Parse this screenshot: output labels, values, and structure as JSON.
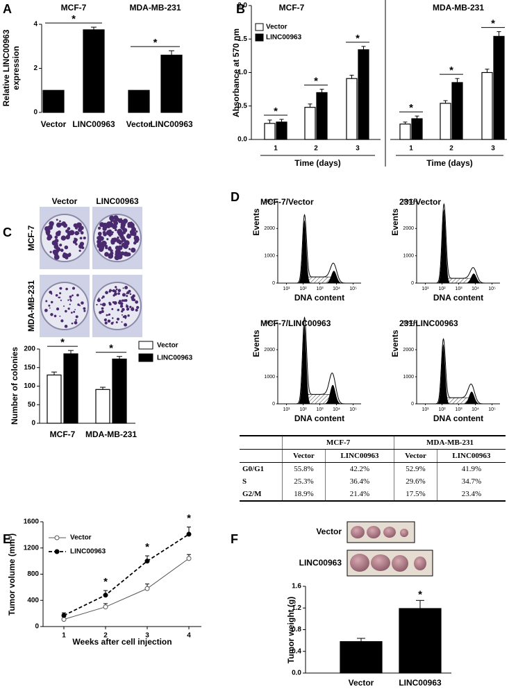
{
  "chart_data": [
    {
      "type": "bar",
      "panel": "A",
      "ylabel": [
        "Relative LINC00963",
        "expression"
      ],
      "groups": [
        "MCF-7",
        "MDA-MB-231"
      ],
      "categories": [
        "Vector",
        "LINC00963",
        "Vector",
        "LINC00963"
      ],
      "values": [
        1,
        3.75,
        1,
        2.6
      ],
      "errors": [
        null,
        0.12,
        null,
        0.2
      ],
      "color": "#000000",
      "ylim": [
        0,
        4
      ],
      "yticks": [
        0,
        2,
        4
      ],
      "annotations": [
        "*",
        "*"
      ]
    },
    {
      "type": "grouped-bar",
      "panel": "B",
      "ylabel": "Absorbance at 570 nm",
      "xlabel": "Time (days)",
      "groups": [
        "MCF-7",
        "MDA-MB-231"
      ],
      "categories": [
        "1",
        "2",
        "3",
        "1",
        "2",
        "3"
      ],
      "series": [
        {
          "name": "Vector",
          "color": "#ffffff",
          "values": [
            0.24,
            0.48,
            0.91,
            0.23,
            0.54,
            1.0
          ],
          "errors": [
            0.05,
            0.05,
            0.05,
            0.03,
            0.04,
            0.05
          ]
        },
        {
          "name": "LINC00963",
          "color": "#000000",
          "values": [
            0.26,
            0.7,
            1.34,
            0.31,
            0.85,
            1.54
          ],
          "errors": [
            0.04,
            0.05,
            0.05,
            0.04,
            0.06,
            0.07
          ]
        }
      ],
      "ylim": [
        0,
        2
      ],
      "yticks": [
        {
          "value": 0,
          "label": "0.0"
        },
        {
          "value": 0.5,
          "label": "0.5"
        },
        {
          "value": 1,
          "label": "1.0"
        },
        {
          "value": 1.5,
          "label": "1.5"
        },
        {
          "value": 2,
          "label": "2.0"
        }
      ],
      "annotations": [
        "*",
        "*",
        "*",
        "*",
        "*",
        "*"
      ]
    },
    {
      "type": "grouped-bar",
      "panel": "C",
      "photo_columns": [
        "Vector",
        "LINC00963"
      ],
      "photo_rows": [
        "MCF-7",
        "MDA-MB-231"
      ],
      "ylabel": "Number of colonies",
      "categories": [
        "MCF-7",
        "MDA-MB-231"
      ],
      "series": [
        {
          "name": "Vector",
          "color": "#ffffff",
          "values": [
            130,
            91
          ],
          "errors": [
            8,
            6
          ]
        },
        {
          "name": "LINC00963",
          "color": "#000000",
          "values": [
            187,
            173
          ],
          "errors": [
            9,
            7
          ]
        }
      ],
      "ylim": [
        0,
        200
      ],
      "yticks": [
        0,
        50,
        100,
        150,
        200
      ],
      "annotations": [
        "*",
        "*"
      ]
    },
    {
      "type": "flow",
      "panel": "D",
      "title": "MCF-7/Vector",
      "xlabel": "DNA content",
      "ylabel": "Events",
      "xscale": "log",
      "xlim": [
        3,
        300000
      ],
      "xticks": [
        {
          "value": 10,
          "label": "10¹"
        },
        {
          "value": 100,
          "label": "10²"
        },
        {
          "value": 1000,
          "label": "10³"
        },
        {
          "value": 10000,
          "label": "10⁴"
        },
        {
          "value": 100000,
          "label": "10⁵"
        }
      ],
      "ylim": [
        0,
        3000
      ],
      "yticks": [
        0,
        1000,
        2000,
        3000
      ],
      "peak_x": [
        120,
        7000
      ],
      "peak_y": [
        2300,
        450
      ]
    },
    {
      "type": "flow",
      "title": "231/Vector",
      "xlabel": "DNA content",
      "ylabel": "Events",
      "xscale": "log",
      "xlim": [
        3,
        300000
      ],
      "xticks": [
        {
          "value": 10,
          "label": "10¹"
        },
        {
          "value": 100,
          "label": "10²"
        },
        {
          "value": 1000,
          "label": "10³"
        },
        {
          "value": 10000,
          "label": "10⁴"
        },
        {
          "value": 100000,
          "label": "10⁵"
        }
      ],
      "ylim": [
        0,
        3000
      ],
      "yticks": [
        0,
        1000,
        2000,
        3000
      ],
      "peak_x": [
        130,
        8000
      ],
      "peak_y": [
        2700,
        350
      ]
    },
    {
      "type": "flow",
      "title": "MCF-7/LINC00963",
      "xlabel": "DNA content",
      "ylabel": "Events",
      "xscale": "log",
      "xlim": [
        3,
        300000
      ],
      "xticks": [
        {
          "value": 10,
          "label": "10¹"
        },
        {
          "value": 100,
          "label": "10²"
        },
        {
          "value": 1000,
          "label": "10³"
        },
        {
          "value": 10000,
          "label": "10⁴"
        },
        {
          "value": 100000,
          "label": "10⁵"
        }
      ],
      "ylim": [
        0,
        3000
      ],
      "yticks": [
        0,
        1000,
        2000,
        3000
      ],
      "peak_x": [
        120,
        6000
      ],
      "peak_y": [
        2900,
        700
      ]
    },
    {
      "type": "flow",
      "title": "231/LINC00963",
      "xlabel": "DNA content",
      "ylabel": "Events",
      "xscale": "log",
      "xlim": [
        3,
        300000
      ],
      "xticks": [
        {
          "value": 10,
          "label": "10¹"
        },
        {
          "value": 100,
          "label": "10²"
        },
        {
          "value": 1000,
          "label": "10³"
        },
        {
          "value": 10000,
          "label": "10⁴"
        },
        {
          "value": 100000,
          "label": "10⁵"
        }
      ],
      "ylim": [
        0,
        3000
      ],
      "yticks": [
        0,
        1000,
        2000,
        3000
      ],
      "peak_x": [
        120,
        6000
      ],
      "peak_y": [
        2200,
        450
      ]
    },
    {
      "type": "line",
      "panel": "E",
      "ylabel": "Tumor volume (mm³)",
      "xlabel": "Weeks after cell injection",
      "x": [
        1,
        2,
        3,
        4
      ],
      "xlim": [
        0.5,
        4.3
      ],
      "xticks": [
        1,
        2,
        3,
        4
      ],
      "series": [
        {
          "name": "Vector",
          "color": "#555555",
          "values": [
            110,
            300,
            580,
            1040
          ],
          "errors": [
            40,
            50,
            70,
            60
          ]
        },
        {
          "name": "LINC00963",
          "color": "#000000",
          "values": [
            170,
            480,
            1000,
            1410
          ],
          "errors": [
            40,
            70,
            80,
            110
          ]
        }
      ],
      "ylim": [
        0,
        1600
      ],
      "yticks": [
        0,
        400,
        800,
        1200,
        1600
      ],
      "annotations": [
        "*",
        "*",
        "*"
      ]
    },
    {
      "type": "bar",
      "panel": "F",
      "photo_labels": [
        "Vector",
        "LINC00963"
      ],
      "ylabel": "Tumor weight (g)",
      "categories": [
        "Vector",
        "LINC00963"
      ],
      "values": [
        0.58,
        1.19
      ],
      "errors": [
        0.06,
        0.15
      ],
      "color": "#000000",
      "ylim": [
        0,
        1.6
      ],
      "yticks": [
        {
          "value": 0,
          "label": "0.0"
        },
        {
          "value": 0.4,
          "label": "0.4"
        },
        {
          "value": 0.8,
          "label": "0.8"
        },
        {
          "value": 1.2,
          "label": "1.2"
        },
        {
          "value": 1.6,
          "label": "1.6"
        }
      ],
      "annotations": [
        "*"
      ]
    }
  ],
  "table": {
    "groups": [
      "MCF-7",
      "MDA-MB-231"
    ],
    "columns": [
      "Vector",
      "LINC00963",
      "Vector",
      "LINC00963"
    ],
    "rows": [
      [
        "G0/G1",
        "55.8%",
        "42.2%",
        "52.9%",
        "41.9%"
      ],
      [
        "S",
        "25.3%",
        "36.4%",
        "29.6%",
        "34.7%"
      ],
      [
        "G2/M",
        "18.9%",
        "21.4%",
        "17.5%",
        "23.4%"
      ]
    ]
  }
}
